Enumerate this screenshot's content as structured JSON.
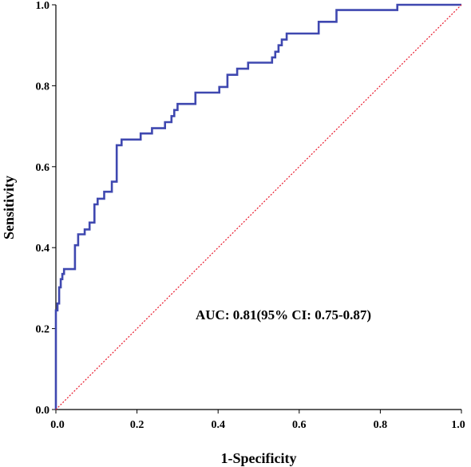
{
  "chart_data": {
    "type": "line",
    "title": "",
    "xlabel": "1-Specificity",
    "ylabel": "Sensitivity",
    "xlim": [
      0,
      1
    ],
    "ylim": [
      0,
      1
    ],
    "x_ticks": [
      "0.0",
      "0.2",
      "0.4",
      "0.6",
      "0.8",
      "1.0"
    ],
    "y_ticks": [
      "0.0",
      "0.2",
      "0.4",
      "0.6",
      "0.8",
      "1.0"
    ],
    "grid": false,
    "annotation": "AUC: 0.81(95% CI: 0.75-0.87)",
    "series": [
      {
        "color": "#3f48b0",
        "style": "step",
        "x": [
          0.0,
          0.0,
          0.004,
          0.004,
          0.008,
          0.008,
          0.012,
          0.012,
          0.016,
          0.016,
          0.02,
          0.02,
          0.028,
          0.028,
          0.047,
          0.047,
          0.055,
          0.055,
          0.071,
          0.071,
          0.083,
          0.083,
          0.095,
          0.095,
          0.103,
          0.103,
          0.119,
          0.119,
          0.138,
          0.138,
          0.15,
          0.15,
          0.162,
          0.162,
          0.17,
          0.17,
          0.209,
          0.209,
          0.237,
          0.237,
          0.269,
          0.269,
          0.285,
          0.285,
          0.292,
          0.292,
          0.3,
          0.3,
          0.344,
          0.344,
          0.403,
          0.403,
          0.423,
          0.423,
          0.447,
          0.447,
          0.474,
          0.474,
          0.533,
          0.533,
          0.541,
          0.541,
          0.549,
          0.549,
          0.557,
          0.557,
          0.569,
          0.569,
          0.589,
          0.589,
          0.648,
          0.648,
          0.692,
          0.692,
          0.842,
          0.842,
          1.0
        ],
        "y": [
          0.0,
          0.245,
          0.245,
          0.262,
          0.262,
          0.302,
          0.302,
          0.322,
          0.322,
          0.335,
          0.335,
          0.347,
          0.347,
          0.347,
          0.347,
          0.406,
          0.406,
          0.433,
          0.433,
          0.445,
          0.445,
          0.462,
          0.462,
          0.507,
          0.507,
          0.521,
          0.521,
          0.538,
          0.538,
          0.563,
          0.563,
          0.653,
          0.653,
          0.667,
          0.667,
          0.667,
          0.667,
          0.682,
          0.682,
          0.695,
          0.695,
          0.71,
          0.71,
          0.725,
          0.725,
          0.74,
          0.74,
          0.755,
          0.755,
          0.783,
          0.783,
          0.797,
          0.797,
          0.827,
          0.827,
          0.842,
          0.842,
          0.857,
          0.857,
          0.87,
          0.87,
          0.884,
          0.884,
          0.9,
          0.9,
          0.914,
          0.914,
          0.929,
          0.929,
          0.929,
          0.929,
          0.958,
          0.958,
          0.987,
          0.987,
          1.0,
          1.0
        ]
      },
      {
        "color": "#e8192c",
        "style": "dashed",
        "x": [
          0,
          1
        ],
        "y": [
          0,
          1
        ]
      }
    ]
  }
}
